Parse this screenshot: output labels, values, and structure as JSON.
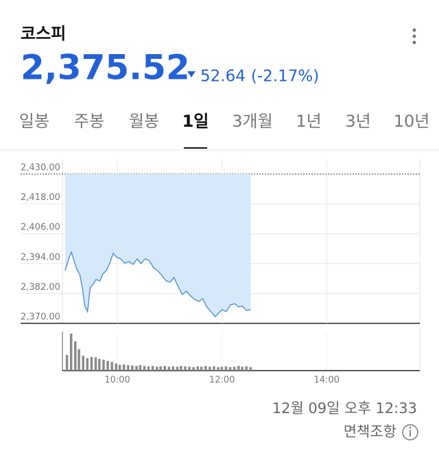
{
  "header": {
    "title": "코스피",
    "price": "2,375.52",
    "change": "52.64",
    "change_pct": "(-2.17%)"
  },
  "tabs": {
    "items": [
      "일봉",
      "주봉",
      "월봉",
      "1일",
      "3개월",
      "1년",
      "3년",
      "10년"
    ],
    "active": 3
  },
  "chart_data": [
    {
      "type": "line",
      "color": "#4a90d9",
      "fill": "#d6e9fb",
      "x": [
        9.0,
        9.07,
        9.12,
        9.17,
        9.22,
        9.28,
        9.33,
        9.38,
        9.43,
        9.48,
        9.54,
        9.59,
        9.67,
        9.72,
        9.79,
        9.85,
        9.92,
        9.98,
        10.06,
        10.14,
        10.22,
        10.3,
        10.38,
        10.45,
        10.53,
        10.61,
        10.69,
        10.77,
        10.85,
        10.93,
        11.01,
        11.08,
        11.16,
        11.24,
        11.32,
        11.4,
        11.48,
        11.56,
        11.63,
        11.71,
        11.79,
        11.87,
        11.92,
        12.0,
        12.08,
        12.16,
        12.24,
        12.32,
        12.39,
        12.47,
        12.55
      ],
      "values": [
        2391.2,
        2395.9,
        2398.6,
        2395.2,
        2392.0,
        2389.8,
        2384.3,
        2376.9,
        2374.7,
        2384.3,
        2385.7,
        2387.6,
        2387.1,
        2389.8,
        2391.2,
        2394.0,
        2398.1,
        2396.7,
        2395.9,
        2394.2,
        2394.8,
        2393.7,
        2395.9,
        2394.0,
        2395.9,
        2395.2,
        2392.4,
        2391.1,
        2389.3,
        2387.1,
        2386.6,
        2388.4,
        2384.9,
        2381.6,
        2382.9,
        2381.0,
        2379.6,
        2378.8,
        2379.9,
        2376.6,
        2374.7,
        2372.7,
        2373.8,
        2375.5,
        2374.7,
        2377.4,
        2377.9,
        2376.6,
        2376.9,
        2375.2,
        2375.52
      ],
      "xlim": [
        8.95,
        15.78
      ],
      "ylim": [
        2370,
        2430
      ],
      "yticks": [
        {
          "value": 2370,
          "label": "2,370.00"
        },
        {
          "value": 2382,
          "label": "2,382.00"
        },
        {
          "value": 2394,
          "label": "2,394.00"
        },
        {
          "value": 2406,
          "label": "2,406.00"
        },
        {
          "value": 2418,
          "label": "2,418.00"
        },
        {
          "value": 2430,
          "label": "2,430.00"
        }
      ],
      "xticks": [
        {
          "value": 10,
          "label": "10:00"
        },
        {
          "value": 12,
          "label": "12:00"
        },
        {
          "value": 14,
          "label": "14:00"
        }
      ],
      "grid": true
    },
    {
      "type": "bar",
      "color": "#8a8a8a",
      "x": [
        9.0,
        9.08,
        9.16,
        9.23,
        9.31,
        9.39,
        9.47,
        9.55,
        9.62,
        9.7,
        9.78,
        9.86,
        9.94,
        10.01,
        10.09,
        10.17,
        10.25,
        10.33,
        10.4,
        10.48,
        10.56,
        10.64,
        10.72,
        10.79,
        10.87,
        10.95,
        11.03,
        11.11,
        11.18,
        11.26,
        11.34,
        11.42,
        11.5,
        11.57,
        11.65,
        11.73,
        11.81,
        11.89,
        11.96,
        12.04,
        12.12,
        12.2,
        12.28,
        12.35,
        12.43,
        12.51
      ],
      "values": [
        40,
        95,
        75,
        55,
        38,
        32,
        35,
        34,
        30,
        28,
        25,
        22,
        18,
        15,
        16,
        14,
        13,
        12,
        14,
        12,
        11,
        12,
        10,
        11,
        12,
        10,
        11,
        10,
        12,
        11,
        10,
        9,
        11,
        10,
        12,
        10,
        11,
        9,
        10,
        11,
        9,
        10,
        12,
        10,
        11,
        9
      ],
      "xlim": [
        8.95,
        15.78
      ],
      "ylim": [
        0,
        100
      ]
    }
  ],
  "footer": {
    "timestamp": "12월 09일 오후 12:33",
    "disclaimer": "면책조항"
  }
}
